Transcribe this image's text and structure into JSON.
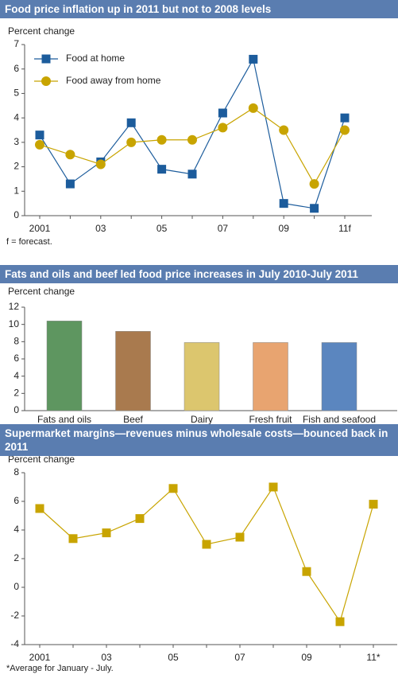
{
  "chart_data": [
    {
      "type": "line",
      "title": "Food price inflation up in 2011 but not to 2008 levels",
      "ylabel": "Percent change",
      "categories": [
        "2001",
        null,
        "03",
        null,
        "05",
        null,
        "07",
        null,
        "09",
        null,
        "11f"
      ],
      "series": [
        {
          "name": "Food at home",
          "color": "#1c5c9c",
          "marker": "square",
          "values": [
            3.3,
            1.3,
            2.2,
            3.8,
            1.9,
            1.7,
            4.2,
            6.4,
            0.5,
            0.3,
            4.0
          ]
        },
        {
          "name": "Food away from home",
          "color": "#c8a400",
          "marker": "circle",
          "values": [
            2.9,
            2.5,
            2.1,
            3.0,
            3.1,
            3.1,
            3.6,
            4.4,
            3.5,
            1.3,
            3.5
          ]
        }
      ],
      "ylim": [
        0,
        7
      ],
      "yticks": [
        0,
        1,
        2,
        3,
        4,
        5,
        6,
        7
      ],
      "legend": "upper left",
      "note": "f = forecast."
    },
    {
      "type": "bar",
      "title": "Fats and oils and beef led food price increases in July 2010-July 2011",
      "ylabel": "Percent change",
      "categories": [
        "Fats and oils",
        "Beef",
        "Dairy",
        "Fresh fruit",
        "Fish and seafood"
      ],
      "values": [
        10.4,
        9.2,
        7.9,
        7.9,
        7.9
      ],
      "colors": [
        "#5e9660",
        "#a97a4e",
        "#dcc66e",
        "#e8a470",
        "#5b86bf"
      ],
      "ylim": [
        0,
        12
      ],
      "yticks": [
        0,
        2,
        4,
        6,
        8,
        10,
        12
      ]
    },
    {
      "type": "line",
      "title": "Supermarket margins—revenues minus wholesale costs—bounced back in 2011",
      "ylabel": "Percent change",
      "categories": [
        "2001",
        null,
        "03",
        null,
        "05",
        null,
        "07",
        null,
        "09",
        null,
        "11*"
      ],
      "series": [
        {
          "color": "#c8a400",
          "marker": "square",
          "values": [
            5.5,
            3.4,
            3.8,
            4.8,
            6.9,
            3.0,
            3.5,
            7.0,
            1.1,
            -2.4,
            5.8
          ]
        }
      ],
      "ylim": [
        -4,
        8
      ],
      "yticks": [
        -4,
        -2,
        0,
        2,
        4,
        6,
        8
      ],
      "note": "*Average for January - July."
    }
  ]
}
